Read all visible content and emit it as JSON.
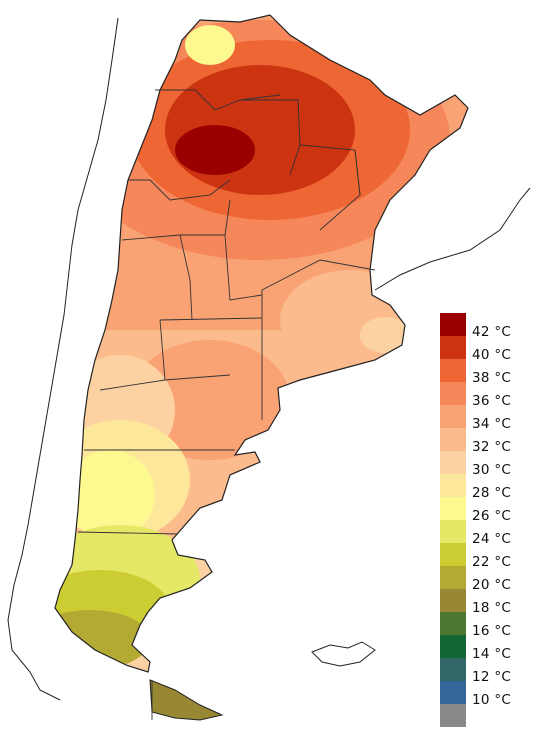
{
  "legend": {
    "items": [
      {
        "label": "42 °C",
        "color": "#990000"
      },
      {
        "label": "40 °C",
        "color": "#cc3311"
      },
      {
        "label": "38 °C",
        "color": "#ee6633"
      },
      {
        "label": "36 °C",
        "color": "#f5875a"
      },
      {
        "label": "34 °C",
        "color": "#f9a274"
      },
      {
        "label": "32 °C",
        "color": "#fbbb8d"
      },
      {
        "label": "30 °C",
        "color": "#fdd2a3"
      },
      {
        "label": "28 °C",
        "color": "#fde79a"
      },
      {
        "label": "26 °C",
        "color": "#fdf88f"
      },
      {
        "label": "24 °C",
        "color": "#e5e866"
      },
      {
        "label": "22 °C",
        "color": "#cccc33"
      },
      {
        "label": "20 °C",
        "color": "#b3aa33"
      },
      {
        "label": "18 °C",
        "color": "#998833"
      },
      {
        "label": "16 °C",
        "color": "#4d7733"
      },
      {
        "label": "14 °C",
        "color": "#116633"
      },
      {
        "label": "12 °C",
        "color": "#336666"
      },
      {
        "label": "10 °C",
        "color": "#336699"
      },
      {
        "label": "",
        "color": "#888888"
      }
    ]
  }
}
